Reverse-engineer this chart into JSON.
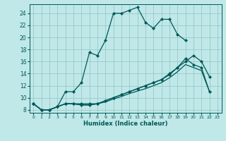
{
  "xlabel": "Humidex (Indice chaleur)",
  "bg_color": "#c0e8e8",
  "line_color": "#005858",
  "grid_color": "#98c8c8",
  "xlim": [
    -0.5,
    23.5
  ],
  "ylim": [
    7.5,
    25.5
  ],
  "xtick_labels": [
    "0",
    "1",
    "2",
    "3",
    "4",
    "5",
    "6",
    "7",
    "8",
    "9",
    "10",
    "11",
    "12",
    "13",
    "14",
    "15",
    "16",
    "17",
    "18",
    "19",
    "20",
    "21",
    "22",
    "23"
  ],
  "xtick_positions": [
    0,
    1,
    2,
    3,
    4,
    5,
    6,
    7,
    8,
    9,
    10,
    11,
    12,
    13,
    14,
    15,
    16,
    17,
    18,
    19,
    20,
    21,
    22,
    23
  ],
  "ytick_positions": [
    8,
    10,
    12,
    14,
    16,
    18,
    20,
    22,
    24
  ],
  "line1_x": [
    0,
    1,
    2,
    3,
    4,
    5,
    6,
    7,
    8,
    9,
    10,
    11,
    12,
    13,
    14,
    15,
    16,
    17,
    18,
    19
  ],
  "line1_y": [
    9,
    8,
    8,
    8.5,
    11,
    11,
    12.5,
    17.5,
    17,
    19.5,
    24,
    24,
    24.5,
    25,
    22.5,
    21.5,
    23,
    23,
    20.5,
    19.5
  ],
  "line2_x": [
    0,
    1,
    2,
    3,
    4,
    5,
    6,
    7,
    8,
    9,
    10,
    11,
    12,
    13,
    14,
    15,
    16,
    17,
    18,
    19,
    20,
    21,
    22
  ],
  "line2_y": [
    9,
    8,
    8,
    8.5,
    9,
    9,
    9,
    9,
    9,
    9.5,
    10,
    10.5,
    11,
    11.5,
    12,
    12.5,
    13,
    14,
    15,
    16,
    17,
    16,
    13.5
  ],
  "line3_x": [
    0,
    1,
    2,
    3,
    4,
    5,
    6,
    7,
    8,
    9,
    10,
    11,
    12,
    13,
    14,
    15,
    16,
    17,
    18,
    19,
    20,
    21,
    22
  ],
  "line3_y": [
    9,
    8,
    8,
    8.5,
    9,
    9,
    8.8,
    8.8,
    9,
    9.5,
    10,
    10.5,
    11,
    11.5,
    12,
    12.5,
    13,
    13.8,
    15,
    16.5,
    15.5,
    15,
    11
  ],
  "line4_x": [
    0,
    1,
    2,
    3,
    4,
    5,
    6,
    7,
    8,
    9,
    10,
    11,
    12,
    13,
    14,
    15,
    16,
    17,
    18,
    19,
    20,
    21,
    22
  ],
  "line4_y": [
    9,
    8,
    8,
    8.5,
    9,
    9,
    8.8,
    8.8,
    9,
    9.3,
    9.8,
    10.2,
    10.7,
    11.1,
    11.5,
    12,
    12.5,
    13.3,
    14.3,
    15.5,
    15,
    14.5,
    11
  ]
}
